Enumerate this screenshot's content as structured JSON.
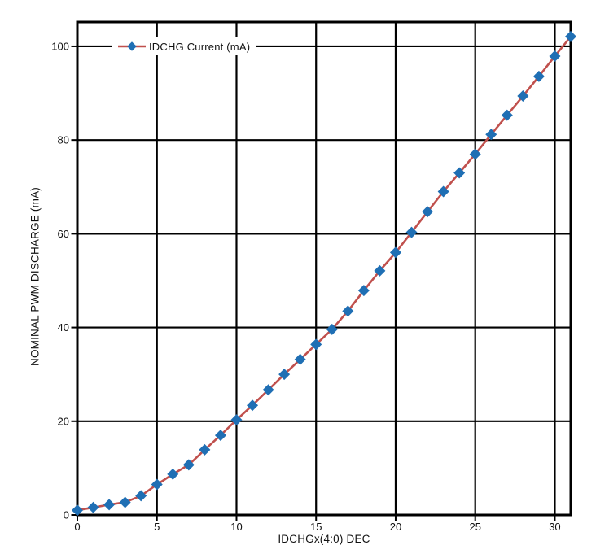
{
  "chart_data": {
    "type": "line",
    "title": "",
    "xlabel": "IDCHGx(4:0) DEC",
    "ylabel": "NOMINAL PWM DISCHARGE (mA)",
    "x": [
      0,
      1,
      2,
      3,
      4,
      5,
      6,
      7,
      8,
      9,
      10,
      11,
      12,
      13,
      14,
      15,
      16,
      17,
      18,
      19,
      20,
      21,
      22,
      23,
      24,
      25,
      26,
      27,
      28,
      29,
      30,
      31
    ],
    "series": [
      {
        "name": "IDCHG Current (mA)",
        "values": [
          1.0,
          1.6,
          2.2,
          2.7,
          4.1,
          6.5,
          8.7,
          10.7,
          13.9,
          17.0,
          20.3,
          23.4,
          26.7,
          30.0,
          33.2,
          36.4,
          39.6,
          43.5,
          47.9,
          52.1,
          56.0,
          60.3,
          64.7,
          69.0,
          73.0,
          77.0,
          81.2,
          85.3,
          89.4,
          93.6,
          97.9,
          102.1
        ],
        "line_color": "#C0504D",
        "marker": "diamond",
        "marker_color": "#1F6FB4"
      }
    ],
    "xlim": [
      0,
      31
    ],
    "ylim": [
      0,
      105.2
    ],
    "x_ticks": [
      0,
      5,
      10,
      15,
      20,
      25,
      30
    ],
    "y_ticks": [
      0,
      20,
      40,
      60,
      80,
      100
    ],
    "x_gridlines": [
      5,
      10,
      15,
      20,
      25,
      30
    ],
    "y_gridlines": [
      20,
      40,
      60,
      80,
      100
    ],
    "grid": true,
    "grid_color": "#000000",
    "frame_color": "#000000",
    "background": "#FFFFFF",
    "legend_position": "top-left-inside"
  }
}
